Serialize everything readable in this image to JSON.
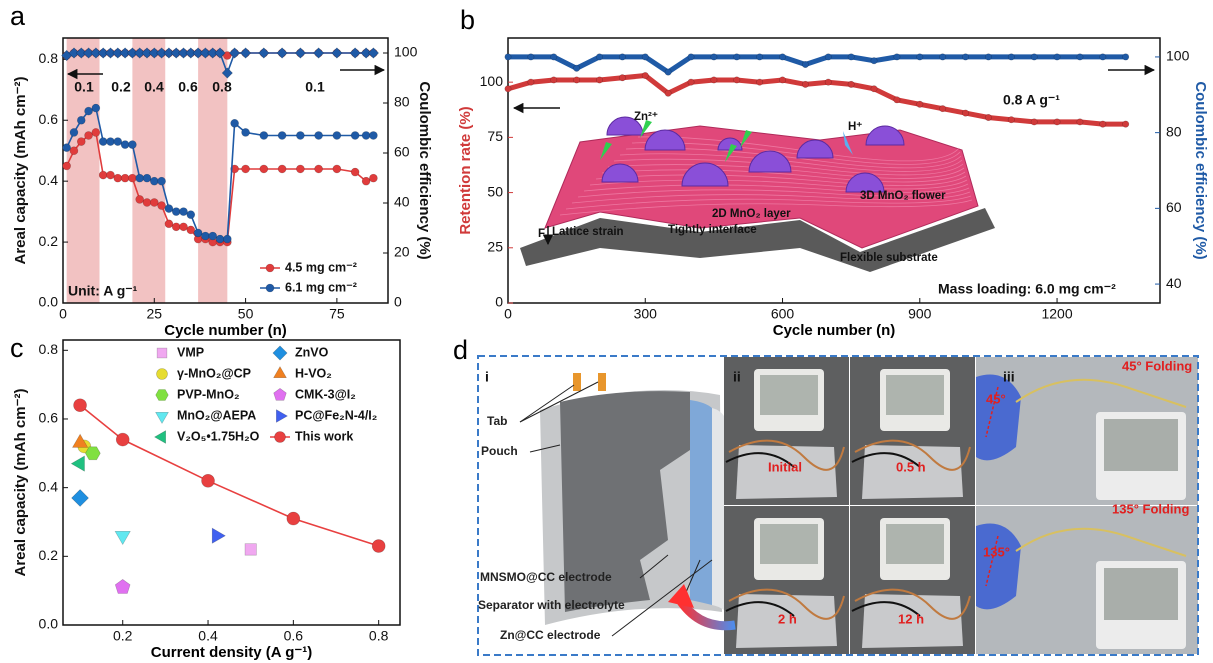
{
  "chart_data": [
    {
      "type": "line",
      "panel_label": "a",
      "x_label": "Cycle number (n)",
      "y_label": "Areal capacity (mAh cm⁻²)",
      "y2_label": "Coulombic efficiency (%)",
      "xlim": [
        0,
        89
      ],
      "ylim": [
        0,
        0.87
      ],
      "y2lim": [
        0,
        106
      ],
      "xticks": [
        0,
        25,
        50,
        75
      ],
      "yticks": [
        {
          "value": 0,
          "label": "0.0"
        },
        0.2,
        0.4,
        0.6,
        0.8
      ],
      "y2ticks": [
        0,
        20,
        40,
        60,
        80,
        100
      ],
      "shaded_x": [
        [
          1,
          10
        ],
        [
          19,
          28
        ],
        [
          37,
          45
        ]
      ],
      "shade_color": "#f2c2c2",
      "rate_labels": [
        "0.1",
        "0.2",
        "0.4",
        "0.6",
        "0.8",
        "0.1"
      ],
      "annotations": [
        "Unit: A g⁻¹"
      ],
      "legend": "lower right",
      "x": [
        1,
        3,
        5,
        7,
        9,
        11,
        13,
        15,
        17,
        19,
        21,
        23,
        25,
        27,
        29,
        31,
        33,
        35,
        37,
        39,
        41,
        43,
        45,
        47,
        50,
        55,
        60,
        65,
        70,
        75,
        80,
        83,
        85
      ],
      "series": [
        {
          "name": "4.5 mg cm⁻²",
          "color": "#e03c3c",
          "marker": "circle",
          "values": [
            0.45,
            0.5,
            0.53,
            0.55,
            0.56,
            0.42,
            0.42,
            0.41,
            0.41,
            0.41,
            0.34,
            0.33,
            0.33,
            0.32,
            0.26,
            0.25,
            0.25,
            0.24,
            0.21,
            0.21,
            0.2,
            0.2,
            0.2,
            0.44,
            0.44,
            0.44,
            0.44,
            0.44,
            0.44,
            0.44,
            0.43,
            0.4,
            0.41
          ]
        },
        {
          "name": "6.1 mg cm⁻²",
          "color": "#1f5aa6",
          "marker": "circle",
          "values": [
            0.51,
            0.56,
            0.6,
            0.63,
            0.64,
            0.53,
            0.53,
            0.53,
            0.52,
            0.52,
            0.41,
            0.41,
            0.4,
            0.4,
            0.31,
            0.3,
            0.3,
            0.29,
            0.23,
            0.22,
            0.22,
            0.21,
            0.21,
            0.59,
            0.56,
            0.55,
            0.55,
            0.55,
            0.55,
            0.55,
            0.55,
            0.55,
            0.55
          ]
        },
        {
          "color": "#e03c3c",
          "marker": "circle",
          "axis": "y2",
          "values": [
            99,
            100,
            100,
            100,
            100,
            100,
            100,
            100,
            100,
            100,
            100,
            100,
            100,
            100,
            100,
            100,
            100,
            100,
            100,
            100,
            100,
            100,
            99,
            100,
            100,
            100,
            100,
            100,
            100,
            100,
            100,
            100,
            100
          ]
        },
        {
          "color": "#1f5aa6",
          "marker": "diamond",
          "axis": "y2",
          "values": [
            99,
            100,
            100,
            100,
            100,
            100,
            100,
            100,
            100,
            100,
            100,
            100,
            100,
            100,
            100,
            100,
            100,
            100,
            100,
            100,
            100,
            100,
            92,
            100,
            100,
            100,
            100,
            100,
            100,
            100,
            100,
            100,
            100
          ]
        }
      ]
    },
    {
      "type": "line",
      "panel_label": "b",
      "x_label": "Cycle number (n)",
      "y_label": "Retention rate (%)",
      "y2_label": "Coulombic efficiency (%)",
      "y_axis_color": "#d03a3a",
      "y2_axis_color": "#1f5aa6",
      "xlim": [
        0,
        1425
      ],
      "ylim": [
        0,
        120
      ],
      "y2lim": [
        35,
        105
      ],
      "xticks": [
        0,
        300,
        600,
        900,
        1200
      ],
      "yticks": [
        0,
        25,
        50,
        75,
        100
      ],
      "y2ticks": [
        40,
        60,
        80,
        100
      ],
      "annotations": [
        "0.8 A g⁻¹",
        "Mass loading: 6.0 mg cm⁻²"
      ],
      "inset_labels": [
        "Zn²⁺",
        "H⁺",
        "3D MnO₂ flower",
        "2D MnO₂ layer",
        "F",
        "Lattice strain",
        "Tightly interface",
        "Flexible substrate"
      ],
      "x": [
        0,
        50,
        100,
        150,
        200,
        250,
        300,
        350,
        400,
        450,
        500,
        550,
        600,
        650,
        700,
        750,
        800,
        850,
        900,
        950,
        1000,
        1050,
        1100,
        1150,
        1200,
        1250,
        1300,
        1350
      ],
      "series": [
        {
          "color": "#d03a3a",
          "marker": "circle",
          "values": [
            97,
            100,
            101,
            101,
            101,
            102,
            103,
            95,
            100,
            101,
            101,
            100,
            101,
            99,
            100,
            99,
            97,
            92,
            90,
            88,
            86,
            84,
            83,
            82,
            82,
            82,
            81,
            81
          ]
        },
        {
          "color": "#1f5aa6",
          "marker": "circle",
          "axis": "y2",
          "values": [
            100,
            100,
            100,
            97,
            100,
            100,
            100,
            96,
            100,
            100,
            100,
            100,
            100,
            98,
            100,
            100,
            99,
            100,
            100,
            100,
            100,
            100,
            100,
            100,
            100,
            100,
            100,
            100
          ]
        }
      ]
    },
    {
      "type": "scatter",
      "panel_label": "c",
      "x_label": "Current density (A g⁻¹)",
      "y_label": "Areal capacity (mAh cm⁻²)",
      "xlim": [
        0.06,
        0.85
      ],
      "ylim": [
        0,
        0.83
      ],
      "xticks": [
        0.2,
        0.4,
        0.6,
        0.8
      ],
      "yticks": [
        {
          "value": 0,
          "label": "0.0"
        },
        0.2,
        0.4,
        0.6,
        0.8
      ],
      "legend": "upper right",
      "series": [
        {
          "name": "VMP",
          "color": "#f0a8f0",
          "marker": "square",
          "x": [
            0.5
          ],
          "values": [
            0.22
          ]
        },
        {
          "name": "γ-MnO₂@CP",
          "color": "#e6dc30",
          "marker": "circle",
          "x": [
            0.11
          ],
          "values": [
            0.52
          ]
        },
        {
          "name": "PVP-MnO₂",
          "color": "#80e040",
          "marker": "hexagon",
          "x": [
            0.13
          ],
          "values": [
            0.5
          ]
        },
        {
          "name": "MnO₂@AEPA",
          "color": "#60e8f0",
          "marker": "triangle-down",
          "x": [
            0.2
          ],
          "values": [
            0.26
          ]
        },
        {
          "name": "V₂O₅•1.75H₂O",
          "color": "#20c080",
          "marker": "triangle-left",
          "x": [
            0.1
          ],
          "values": [
            0.47
          ]
        },
        {
          "name": "ZnVO",
          "color": "#1f8fe0",
          "marker": "diamond",
          "x": [
            0.1
          ],
          "values": [
            0.37
          ]
        },
        {
          "name": "H-VO₂",
          "color": "#f08020",
          "marker": "triangle-up",
          "x": [
            0.1
          ],
          "values": [
            0.53
          ]
        },
        {
          "name": "CMK-3@I₂",
          "color": "#e070f0",
          "marker": "pentagon",
          "x": [
            0.2
          ],
          "values": [
            0.11
          ]
        },
        {
          "name": "PC@Fe₂N-4/I₂",
          "color": "#4060f0",
          "marker": "triangle-right",
          "x": [
            0.42
          ],
          "values": [
            0.26
          ]
        },
        {
          "name": "This work",
          "color": "#e84040",
          "marker": "circle",
          "line": true,
          "x": [
            0.1,
            0.2,
            0.4,
            0.6,
            0.8
          ],
          "values": [
            0.64,
            0.54,
            0.42,
            0.31,
            0.23
          ]
        }
      ]
    }
  ],
  "panel_d": {
    "label": "d",
    "schematic": {
      "roman": "i",
      "labels": [
        "Tab",
        "Pouch",
        "MNSMO@CC electrode",
        "Separator with electrolyte",
        "Zn@CC electrode"
      ]
    },
    "storage": {
      "roman": "ii",
      "captions": [
        "Initial",
        "0.5 h",
        "2 h",
        "12 h"
      ]
    },
    "folding": {
      "roman": "iii",
      "captions": [
        "45° Folding",
        "135° Folding"
      ],
      "angles": [
        "45°",
        "135°"
      ]
    }
  }
}
